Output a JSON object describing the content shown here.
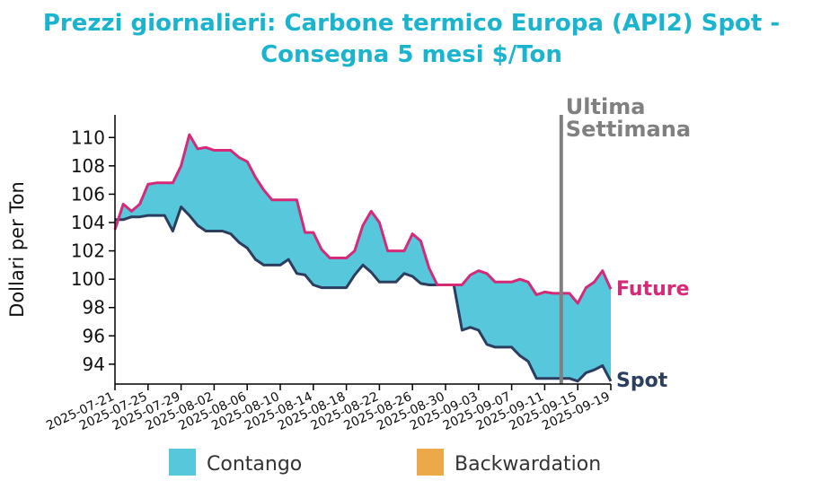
{
  "chart_data": {
    "type": "area",
    "title_line1": "Prezzi giornalieri: Carbone termico Europa (API2) Spot -",
    "title_line2": "Consegna 5 mesi $/Ton",
    "ylabel": "Dollari per Ton",
    "ylim": [
      92.6,
      111.6
    ],
    "yticks": [
      94,
      96,
      98,
      100,
      102,
      104,
      106,
      108,
      110
    ],
    "xlim": [
      "2025-07-21",
      "2025-09-19"
    ],
    "xticks": [
      "2025-07-21",
      "2025-07-25",
      "2025-07-29",
      "2025-08-02",
      "2025-08-06",
      "2025-08-10",
      "2025-08-14",
      "2025-08-18",
      "2025-08-22",
      "2025-08-26",
      "2025-08-30",
      "2025-09-03",
      "2025-09-07",
      "2025-09-11",
      "2025-09-15",
      "2025-09-19"
    ],
    "vline": {
      "x": "2025-09-13",
      "label_line1": "Ultima",
      "label_line2": "Settimana",
      "color": "#808080"
    },
    "legend": {
      "placement": "bottom",
      "items": [
        {
          "label": "Contango",
          "color": "#57c7dc"
        },
        {
          "label": "Backwardation",
          "color": "#eba94a"
        }
      ]
    },
    "series": [
      {
        "name": "Future",
        "color": "#d42a77",
        "points": [
          [
            "2025-07-21",
            103.5
          ],
          [
            "2025-07-22",
            105.3
          ],
          [
            "2025-07-23",
            104.8
          ],
          [
            "2025-07-24",
            105.3
          ],
          [
            "2025-07-25",
            106.7
          ],
          [
            "2025-07-26",
            106.8
          ],
          [
            "2025-07-27",
            106.8
          ],
          [
            "2025-07-28",
            106.8
          ],
          [
            "2025-07-29",
            108.0
          ],
          [
            "2025-07-30",
            110.2
          ],
          [
            "2025-07-31",
            109.2
          ],
          [
            "2025-08-01",
            109.3
          ],
          [
            "2025-08-02",
            109.1
          ],
          [
            "2025-08-03",
            109.1
          ],
          [
            "2025-08-04",
            109.1
          ],
          [
            "2025-08-05",
            108.6
          ],
          [
            "2025-08-06",
            108.3
          ],
          [
            "2025-08-07",
            107.2
          ],
          [
            "2025-08-08",
            106.3
          ],
          [
            "2025-08-09",
            105.6
          ],
          [
            "2025-08-10",
            105.6
          ],
          [
            "2025-08-11",
            105.6
          ],
          [
            "2025-08-12",
            105.6
          ],
          [
            "2025-08-13",
            103.3
          ],
          [
            "2025-08-14",
            103.3
          ],
          [
            "2025-08-15",
            102.1
          ],
          [
            "2025-08-16",
            101.5
          ],
          [
            "2025-08-17",
            101.5
          ],
          [
            "2025-08-18",
            101.5
          ],
          [
            "2025-08-19",
            102.0
          ],
          [
            "2025-08-20",
            103.8
          ],
          [
            "2025-08-21",
            104.8
          ],
          [
            "2025-08-22",
            104.0
          ],
          [
            "2025-08-23",
            102.0
          ],
          [
            "2025-08-24",
            102.0
          ],
          [
            "2025-08-25",
            102.0
          ],
          [
            "2025-08-26",
            103.2
          ],
          [
            "2025-08-27",
            102.7
          ],
          [
            "2025-08-28",
            100.8
          ],
          [
            "2025-08-29",
            99.6
          ],
          [
            "2025-08-30",
            99.6
          ],
          [
            "2025-08-31",
            99.6
          ],
          [
            "2025-09-01",
            99.6
          ],
          [
            "2025-09-02",
            100.3
          ],
          [
            "2025-09-03",
            100.6
          ],
          [
            "2025-09-04",
            100.4
          ],
          [
            "2025-09-05",
            99.8
          ],
          [
            "2025-09-06",
            99.8
          ],
          [
            "2025-09-07",
            99.8
          ],
          [
            "2025-09-08",
            100.0
          ],
          [
            "2025-09-09",
            99.8
          ],
          [
            "2025-09-10",
            98.9
          ],
          [
            "2025-09-11",
            99.1
          ],
          [
            "2025-09-12",
            99.0
          ],
          [
            "2025-09-13",
            99.0
          ],
          [
            "2025-09-14",
            99.0
          ],
          [
            "2025-09-15",
            98.3
          ],
          [
            "2025-09-16",
            99.4
          ],
          [
            "2025-09-17",
            99.8
          ],
          [
            "2025-09-18",
            100.6
          ],
          [
            "2025-09-19",
            99.3
          ]
        ]
      },
      {
        "name": "Spot",
        "color": "#2c3e60",
        "points": [
          [
            "2025-07-21",
            104.2
          ],
          [
            "2025-07-22",
            104.2
          ],
          [
            "2025-07-23",
            104.4
          ],
          [
            "2025-07-24",
            104.4
          ],
          [
            "2025-07-25",
            104.5
          ],
          [
            "2025-07-26",
            104.5
          ],
          [
            "2025-07-27",
            104.5
          ],
          [
            "2025-07-28",
            103.4
          ],
          [
            "2025-07-29",
            105.1
          ],
          [
            "2025-07-30",
            104.5
          ],
          [
            "2025-07-31",
            103.8
          ],
          [
            "2025-08-01",
            103.4
          ],
          [
            "2025-08-02",
            103.4
          ],
          [
            "2025-08-03",
            103.4
          ],
          [
            "2025-08-04",
            103.2
          ],
          [
            "2025-08-05",
            102.6
          ],
          [
            "2025-08-06",
            102.2
          ],
          [
            "2025-08-07",
            101.4
          ],
          [
            "2025-08-08",
            101.0
          ],
          [
            "2025-08-09",
            101.0
          ],
          [
            "2025-08-10",
            101.0
          ],
          [
            "2025-08-11",
            101.4
          ],
          [
            "2025-08-12",
            100.4
          ],
          [
            "2025-08-13",
            100.3
          ],
          [
            "2025-08-14",
            99.6
          ],
          [
            "2025-08-15",
            99.4
          ],
          [
            "2025-08-16",
            99.4
          ],
          [
            "2025-08-17",
            99.4
          ],
          [
            "2025-08-18",
            99.4
          ],
          [
            "2025-08-19",
            100.3
          ],
          [
            "2025-08-20",
            101.0
          ],
          [
            "2025-08-21",
            100.5
          ],
          [
            "2025-08-22",
            99.8
          ],
          [
            "2025-08-23",
            99.8
          ],
          [
            "2025-08-24",
            99.8
          ],
          [
            "2025-08-25",
            100.4
          ],
          [
            "2025-08-26",
            100.2
          ],
          [
            "2025-08-27",
            99.7
          ],
          [
            "2025-08-28",
            99.6
          ],
          [
            "2025-08-29",
            99.6
          ],
          [
            "2025-08-30",
            99.6
          ],
          [
            "2025-08-31",
            99.6
          ],
          [
            "2025-09-01",
            96.4
          ],
          [
            "2025-09-02",
            96.6
          ],
          [
            "2025-09-03",
            96.4
          ],
          [
            "2025-09-04",
            95.4
          ],
          [
            "2025-09-05",
            95.2
          ],
          [
            "2025-09-06",
            95.2
          ],
          [
            "2025-09-07",
            95.2
          ],
          [
            "2025-09-08",
            94.6
          ],
          [
            "2025-09-09",
            94.2
          ],
          [
            "2025-09-10",
            93.0
          ],
          [
            "2025-09-11",
            93.0
          ],
          [
            "2025-09-12",
            93.0
          ],
          [
            "2025-09-13",
            93.0
          ],
          [
            "2025-09-14",
            93.0
          ],
          [
            "2025-09-15",
            92.8
          ],
          [
            "2025-09-16",
            93.4
          ],
          [
            "2025-09-17",
            93.6
          ],
          [
            "2025-09-18",
            93.9
          ],
          [
            "2025-09-19",
            92.8
          ]
        ]
      }
    ]
  }
}
